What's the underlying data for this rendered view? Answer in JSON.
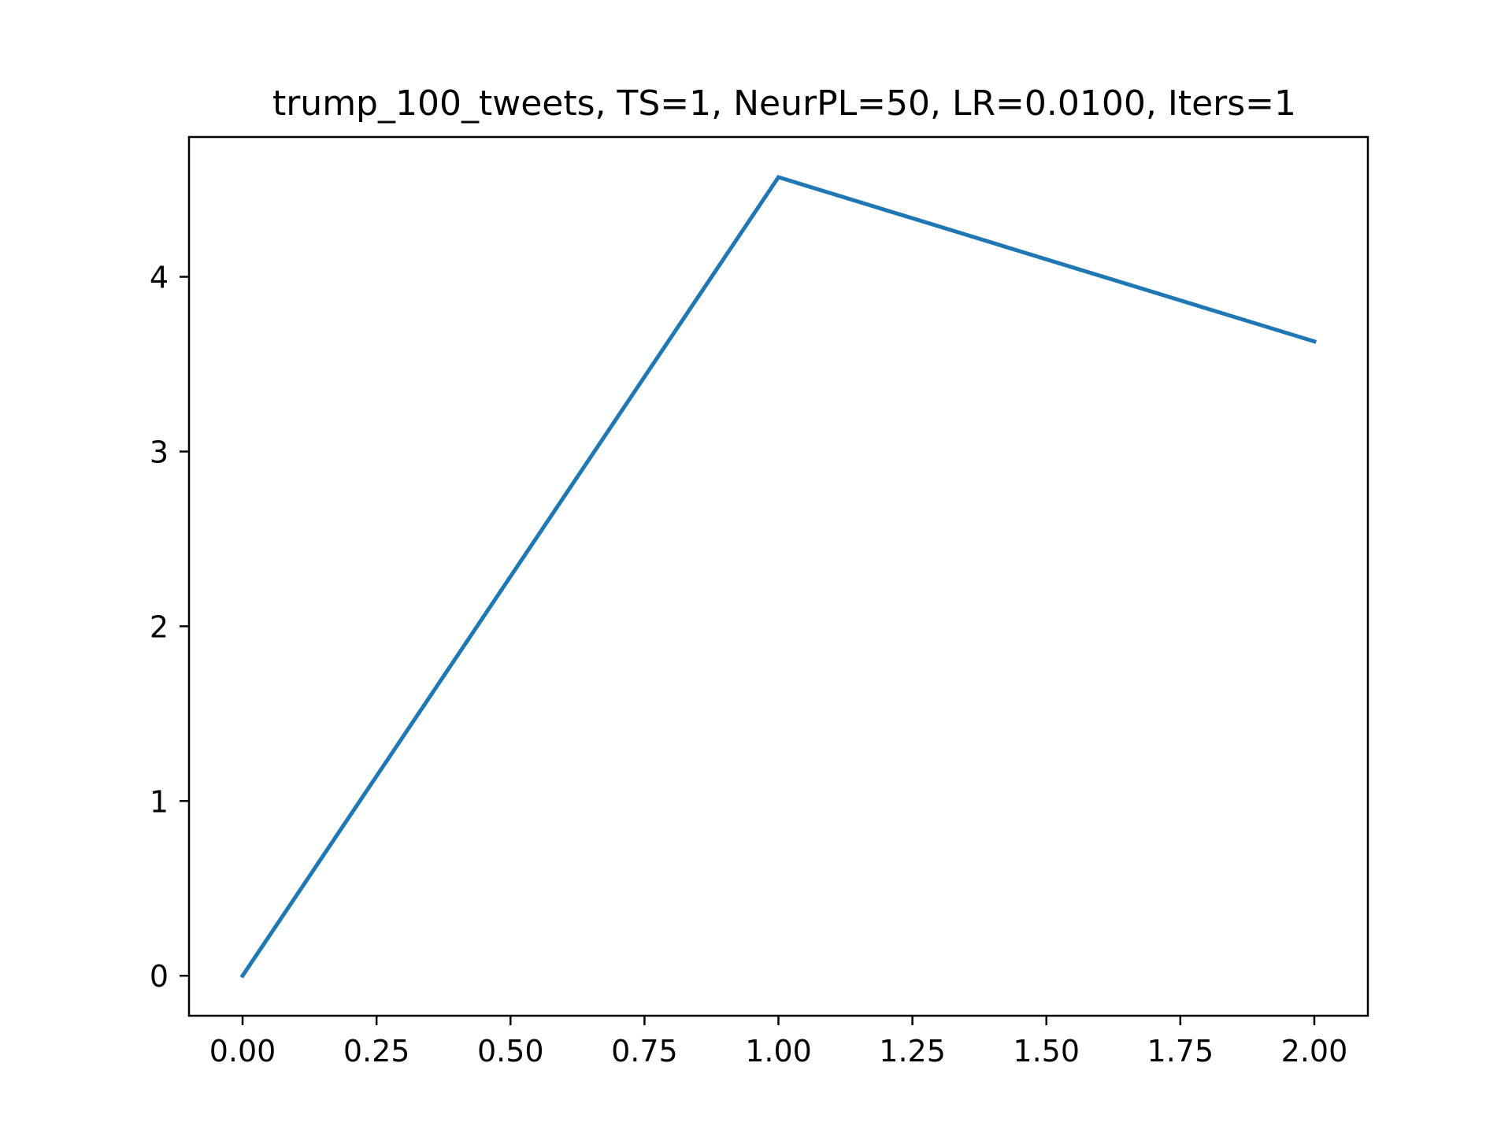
{
  "chart_data": {
    "type": "line",
    "title": "trump_100_tweets, TS=1, NeurPL=50, LR=0.0100, Iters=1",
    "xlabel": "",
    "ylabel": "",
    "x": [
      0,
      1,
      2
    ],
    "series": [
      {
        "values": [
          0.0,
          4.57,
          3.63
        ],
        "color": "#1f77b4"
      }
    ],
    "xlim": [
      -0.1,
      2.1
    ],
    "ylim": [
      -0.229,
      4.8
    ],
    "xticks": [
      0,
      0.25,
      0.5,
      0.75,
      1,
      1.25,
      1.5,
      1.75,
      2
    ],
    "xtick_labels": [
      "0.00",
      "0.25",
      "0.50",
      "0.75",
      "1.00",
      "1.25",
      "1.50",
      "1.75",
      "2.00"
    ],
    "yticks": [
      0,
      1,
      2,
      3,
      4
    ],
    "ytick_labels": [
      "0",
      "1",
      "2",
      "3",
      "4"
    ],
    "grid": false,
    "legend": "none"
  }
}
